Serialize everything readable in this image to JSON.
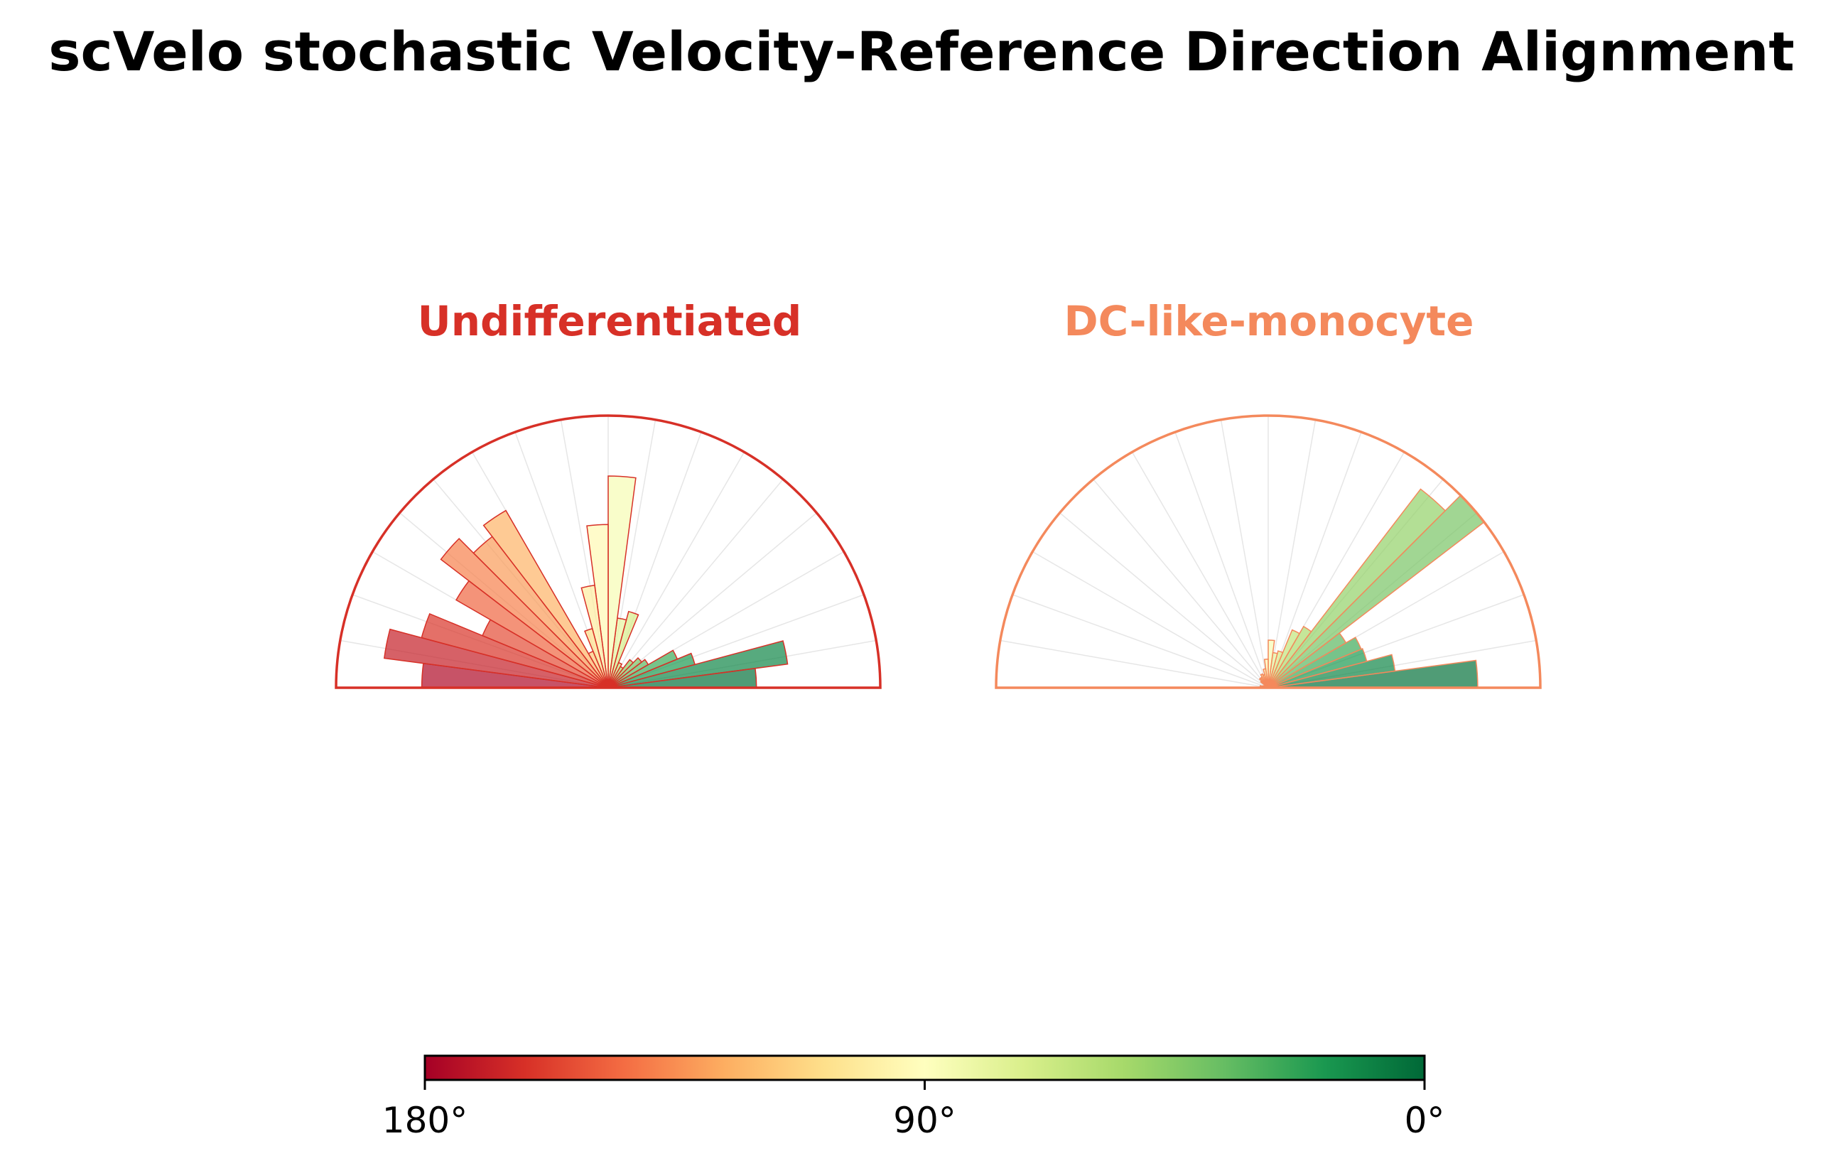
{
  "title": "scVelo stochastic Velocity-Reference Direction Alignment",
  "chart_data": [
    {
      "type": "polar-bar",
      "title": "Undifferentiated",
      "title_color": "#d73027",
      "angle_range_deg": [
        0,
        180
      ],
      "bin_width_deg": 7.5,
      "bin_centers_deg": [
        3.75,
        11.25,
        18.75,
        26.25,
        33.75,
        41.25,
        48.75,
        56.25,
        63.75,
        71.25,
        78.75,
        86.25,
        93.75,
        101.25,
        108.75,
        116.25,
        123.75,
        131.25,
        138.75,
        146.25,
        153.75,
        161.25,
        168.75,
        176.25
      ],
      "values": [
        0.545,
        0.665,
        0.33,
        0.275,
        0.17,
        0.155,
        0.13,
        0.09,
        0.1,
        0.29,
        0.258,
        0.778,
        0.6,
        0.38,
        0.225,
        0.145,
        0.752,
        0.7,
        0.775,
        0.645,
        0.5,
        0.71,
        0.83,
        0.685
      ],
      "rmax": 1.0,
      "grid": true
    },
    {
      "type": "polar-bar",
      "title": "DC-like-monocyte",
      "title_color": "#f4895c",
      "angle_range_deg": [
        0,
        180
      ],
      "bin_width_deg": 7.5,
      "bin_centers_deg": [
        3.75,
        11.25,
        18.75,
        26.25,
        33.75,
        41.25,
        48.75,
        56.25,
        63.75,
        71.25,
        78.75,
        86.25,
        93.75,
        101.25,
        108.75,
        116.25,
        123.75,
        131.25,
        138.75,
        146.25,
        153.75,
        161.25,
        168.75,
        176.25
      ],
      "values": [
        0.77,
        0.47,
        0.375,
        0.37,
        0.33,
        1.0,
        0.92,
        0.26,
        0.23,
        0.14,
        0.13,
        0.175,
        0.105,
        0.07,
        0.05,
        0.055,
        0.045,
        0.045,
        0.035,
        0.015,
        0.015,
        0.02,
        0.03,
        0.01
      ],
      "rmax": 1.0,
      "grid": true
    }
  ],
  "colorbar": {
    "colormap": "RdYlGn",
    "range_deg": [
      180,
      0
    ],
    "ticks": [
      "180°",
      "90°",
      "0°"
    ],
    "stops": [
      "#a50026",
      "#d73027",
      "#f46d43",
      "#fdae61",
      "#fee08b",
      "#ffffbf",
      "#d9ef8b",
      "#a6d96a",
      "#66bd63",
      "#1a9850",
      "#006837"
    ]
  }
}
